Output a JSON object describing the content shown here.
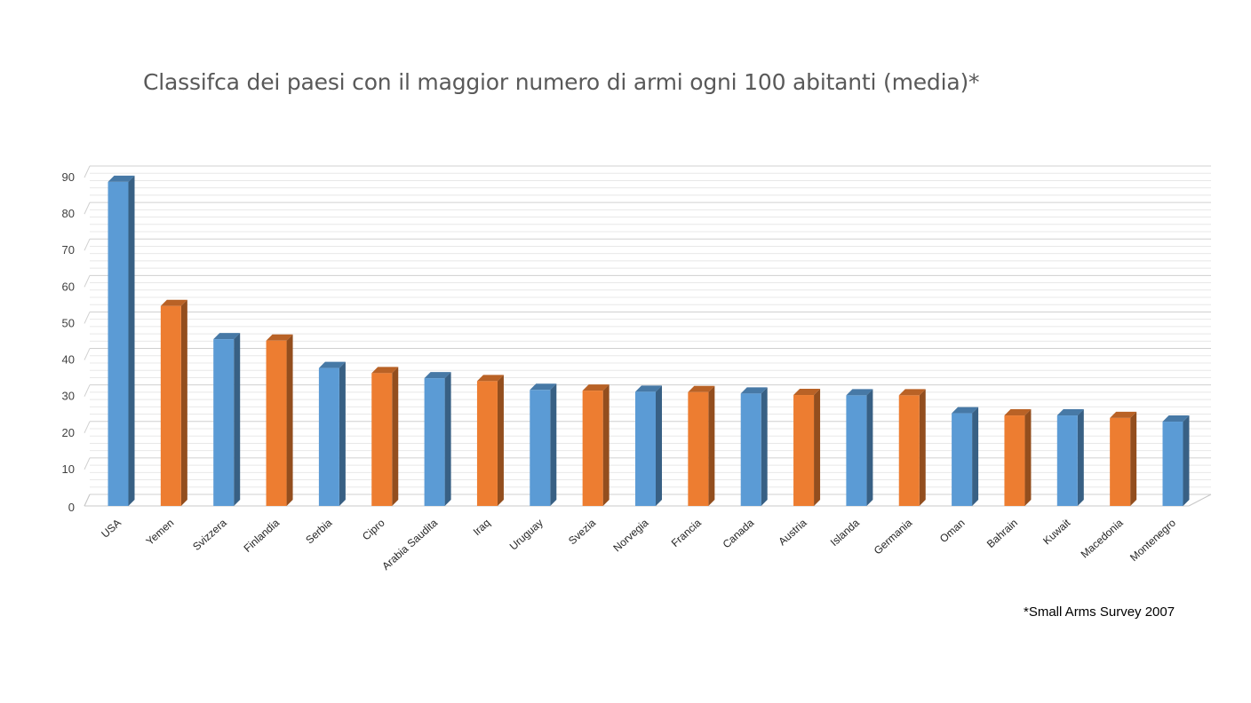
{
  "chart_data": {
    "type": "bar",
    "title": "Classifca dei paesi con il maggior numero di armi ogni 100 abitanti (media)*",
    "footnote": "*Small Arms Survey 2007",
    "categories": [
      "USA",
      "Yemen",
      "Svizzera",
      "Finlandia",
      "Serbia",
      "Cipro",
      "Arabia Saudita",
      "Iraq",
      "Uruguay",
      "Svezia",
      "Norvegia",
      "Francia",
      "Canada",
      "Austria",
      "Islanda",
      "Germania",
      "Oman",
      "Bahrain",
      "Kuwait",
      "Macedonia",
      "Montenegro"
    ],
    "values": [
      88.8,
      54.8,
      45.7,
      45.3,
      37.8,
      36.4,
      35,
      34.2,
      31.8,
      31.6,
      31.3,
      31.2,
      30.8,
      30.4,
      30.3,
      30.3,
      25.4,
      24.8,
      24.8,
      24.1,
      23.1
    ],
    "ylim": [
      0,
      90
    ],
    "yticks": [
      0,
      10,
      20,
      30,
      40,
      50,
      60,
      70,
      80,
      90
    ],
    "xlabel": "",
    "ylabel": "",
    "grid": true,
    "style": "3d-columns",
    "colors": {
      "blue": "#5b9bd5",
      "orange": "#ed7d31"
    },
    "color_pattern": "alternating blue/orange starting with blue"
  }
}
